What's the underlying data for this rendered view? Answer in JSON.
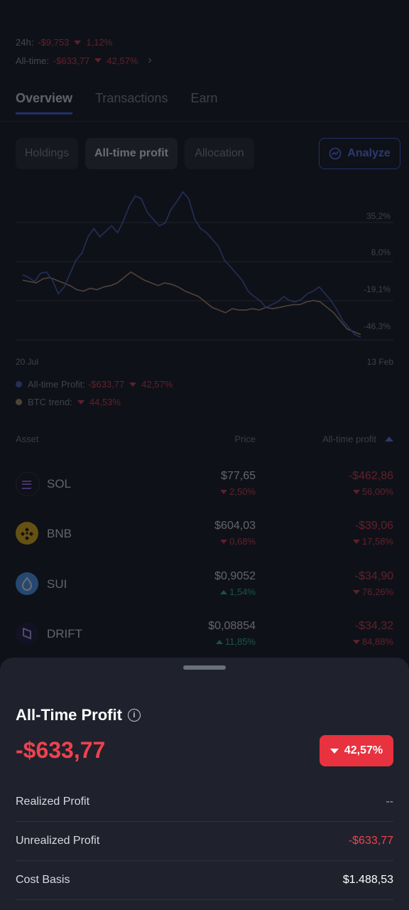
{
  "summary": {
    "h24_label": "24h:",
    "h24_value": "-$9,753",
    "h24_pct": "1,12%",
    "alltime_label": "All-time:",
    "alltime_value": "-$633,77",
    "alltime_pct": "42,57%"
  },
  "tabs": [
    {
      "label": "Overview",
      "active": true
    },
    {
      "label": "Transactions",
      "active": false
    },
    {
      "label": "Earn",
      "active": false
    }
  ],
  "chips": [
    {
      "label": "Holdings",
      "active": false
    },
    {
      "label": "All-time profit",
      "active": true
    },
    {
      "label": "Allocation",
      "active": false
    }
  ],
  "analyze_label": "Analyze",
  "chart_data": {
    "type": "line",
    "x_start_label": "20 Jul",
    "x_end_label": "13 Feb",
    "y_ticks": [
      "35,2%",
      "8,0%",
      "-19,1%",
      "-46,3%"
    ],
    "series": [
      {
        "name": "All-time Profit",
        "color": "#4a5fc9",
        "values": [
          -6,
          -8,
          -11,
          -5,
          -4,
          -10,
          -20,
          -15,
          -5,
          5,
          10,
          22,
          28,
          22,
          26,
          30,
          25,
          34,
          45,
          52,
          50,
          40,
          35,
          30,
          32,
          42,
          48,
          55,
          50,
          35,
          28,
          25,
          20,
          15,
          5,
          0,
          -5,
          -10,
          -18,
          -22,
          -25,
          -30,
          -28,
          -26,
          -22,
          -25,
          -26,
          -24,
          -20,
          -18,
          -15,
          -20,
          -25,
          -32,
          -40,
          -45,
          -50,
          -52
        ]
      },
      {
        "name": "BTC trend",
        "color": "#b79472",
        "values": [
          -10,
          -11,
          -12,
          -9,
          -8,
          -10,
          -12,
          -14,
          -17,
          -18,
          -16,
          -17,
          -15,
          -14,
          -12,
          -8,
          -4,
          -7,
          -10,
          -12,
          -14,
          -12,
          -13,
          -15,
          -18,
          -20,
          -22,
          -26,
          -30,
          -32,
          -34,
          -31,
          -32,
          -32,
          -31,
          -32,
          -30,
          -31,
          -30,
          -29,
          -28,
          -28,
          -26,
          -25,
          -26,
          -30,
          -34,
          -40,
          -46,
          -48,
          -50
        ]
      }
    ]
  },
  "legend": {
    "profit_label": "All-time Profit:",
    "profit_value": "-$633,77",
    "profit_pct": "42,57%",
    "btc_label": "BTC trend:",
    "btc_pct": "44,53%"
  },
  "table": {
    "headers": {
      "asset": "Asset",
      "price": "Price",
      "profit": "All-time profit"
    },
    "rows": [
      {
        "symbol": "SOL",
        "price": "$77,65",
        "price_change": "2,50%",
        "price_dir": "down",
        "profit": "-$462,86",
        "profit_change": "56,00%",
        "color": "#101018"
      },
      {
        "symbol": "BNB",
        "price": "$604,03",
        "price_change": "0,68%",
        "price_dir": "down",
        "profit": "-$39,06",
        "profit_change": "17,58%",
        "color": "#f0b90b"
      },
      {
        "symbol": "SUI",
        "price": "$0,9052",
        "price_change": "1,54%",
        "price_dir": "up",
        "profit": "-$34,90",
        "profit_change": "76,26%",
        "color": "#4da2ff"
      },
      {
        "symbol": "DRIFT",
        "price": "$0,08854",
        "price_change": "11,85%",
        "price_dir": "up",
        "profit": "-$34,32",
        "profit_change": "84,88%",
        "color": "#1a1438"
      }
    ]
  },
  "sheet": {
    "title": "All-Time Profit",
    "info_glyph": "i",
    "value": "-$633,77",
    "badge_pct": "42,57%",
    "rows": [
      {
        "label": "Realized Profit",
        "value": "--",
        "tone": "muted"
      },
      {
        "label": "Unrealized Profit",
        "value": "-$633,77",
        "tone": "red"
      },
      {
        "label": "Cost Basis",
        "value": "$1.488,53",
        "tone": "white"
      }
    ]
  }
}
